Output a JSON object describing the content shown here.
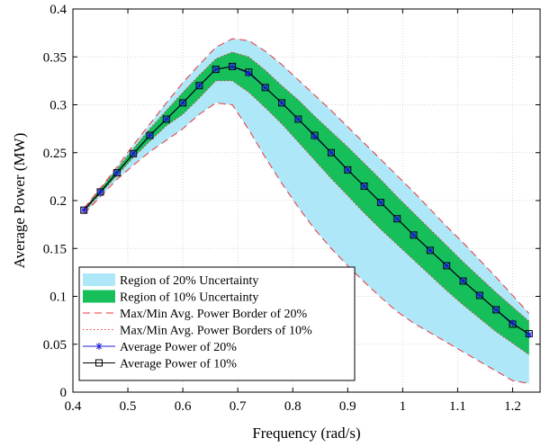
{
  "chart_data": {
    "type": "area",
    "xlabel": "Frequency (rad/s)",
    "ylabel": "Average Power (MW)",
    "xlim": [
      0.4,
      1.25
    ],
    "ylim": [
      0,
      0.4
    ],
    "xticks": [
      0.4,
      0.5,
      0.6,
      0.7,
      0.8,
      0.9,
      1,
      1.1,
      1.2
    ],
    "xtick_labels": [
      "0.4",
      "0.5",
      "0.6",
      "0.7",
      "0.8",
      "0.9",
      "1",
      "1.1",
      "1.2"
    ],
    "yticks": [
      0,
      0.05,
      0.1,
      0.15,
      0.2,
      0.25,
      0.3,
      0.35,
      0.4
    ],
    "ytick_labels": [
      "0",
      "0.05",
      "0.1",
      "0.15",
      "0.2",
      "0.25",
      "0.3",
      "0.35",
      "0.4"
    ],
    "grid": true,
    "legend_position": "bottom-left",
    "colors": {
      "region20": "#aee8f8",
      "region10": "#16bf5a",
      "border20": "#e8343a",
      "border10": "#e8343a",
      "avg20": "#1a1ad6",
      "avg10": "#000000",
      "grid": "#d6d6d6"
    },
    "x": [
      0.42,
      0.45,
      0.48,
      0.51,
      0.54,
      0.57,
      0.6,
      0.63,
      0.66,
      0.69,
      0.72,
      0.75,
      0.78,
      0.81,
      0.84,
      0.87,
      0.9,
      0.93,
      0.96,
      0.99,
      1.02,
      1.05,
      1.08,
      1.11,
      1.14,
      1.17,
      1.2,
      1.23
    ],
    "series": [
      {
        "name": "Region of 20% Uncertainty",
        "kind": "band",
        "upper": [
          0.192,
          0.213,
          0.235,
          0.258,
          0.28,
          0.302,
          0.323,
          0.342,
          0.36,
          0.369,
          0.367,
          0.356,
          0.342,
          0.326,
          0.31,
          0.294,
          0.277,
          0.26,
          0.243,
          0.226,
          0.209,
          0.191,
          0.173,
          0.156,
          0.138,
          0.12,
          0.101,
          0.082
        ],
        "lower": [
          0.186,
          0.204,
          0.222,
          0.237,
          0.251,
          0.263,
          0.275,
          0.29,
          0.302,
          0.3,
          0.274,
          0.245,
          0.218,
          0.193,
          0.17,
          0.15,
          0.132,
          0.115,
          0.099,
          0.084,
          0.072,
          0.062,
          0.052,
          0.042,
          0.032,
          0.022,
          0.012,
          0.009
        ]
      },
      {
        "name": "Region of 10% Uncertainty",
        "kind": "band",
        "upper": [
          0.191,
          0.212,
          0.233,
          0.254,
          0.275,
          0.294,
          0.313,
          0.331,
          0.348,
          0.355,
          0.35,
          0.336,
          0.32,
          0.305,
          0.288,
          0.272,
          0.256,
          0.239,
          0.222,
          0.204,
          0.187,
          0.17,
          0.153,
          0.136,
          0.12,
          0.104,
          0.089,
          0.074
        ],
        "lower": [
          0.188,
          0.207,
          0.226,
          0.245,
          0.262,
          0.278,
          0.29,
          0.307,
          0.325,
          0.325,
          0.313,
          0.297,
          0.28,
          0.261,
          0.242,
          0.223,
          0.205,
          0.187,
          0.17,
          0.154,
          0.138,
          0.122,
          0.106,
          0.091,
          0.077,
          0.063,
          0.051,
          0.039
        ]
      },
      {
        "name": "Max/Min Avg. Power Border of 20%",
        "kind": "border",
        "of": "Region of 20% Uncertainty"
      },
      {
        "name": "Max/Min Avg. Power Borders of 10%",
        "kind": "border",
        "of": "Region of 10% Uncertainty"
      },
      {
        "name": "Average Power of 20%",
        "kind": "line",
        "marker": "asterisk",
        "values": [
          0.19,
          0.209,
          0.229,
          0.249,
          0.268,
          0.285,
          0.302,
          0.32,
          0.337,
          0.34,
          0.333,
          0.318,
          0.302,
          0.285,
          0.267,
          0.25,
          0.232,
          0.215,
          0.198,
          0.181,
          0.164,
          0.148,
          0.132,
          0.116,
          0.101,
          0.086,
          0.072,
          0.06
        ]
      },
      {
        "name": "Average Power of 10%",
        "kind": "line",
        "marker": "square",
        "values": [
          0.19,
          0.209,
          0.229,
          0.249,
          0.268,
          0.285,
          0.302,
          0.32,
          0.337,
          0.34,
          0.334,
          0.318,
          0.302,
          0.285,
          0.268,
          0.25,
          0.232,
          0.215,
          0.198,
          0.181,
          0.164,
          0.148,
          0.132,
          0.116,
          0.101,
          0.086,
          0.071,
          0.061
        ]
      }
    ]
  }
}
